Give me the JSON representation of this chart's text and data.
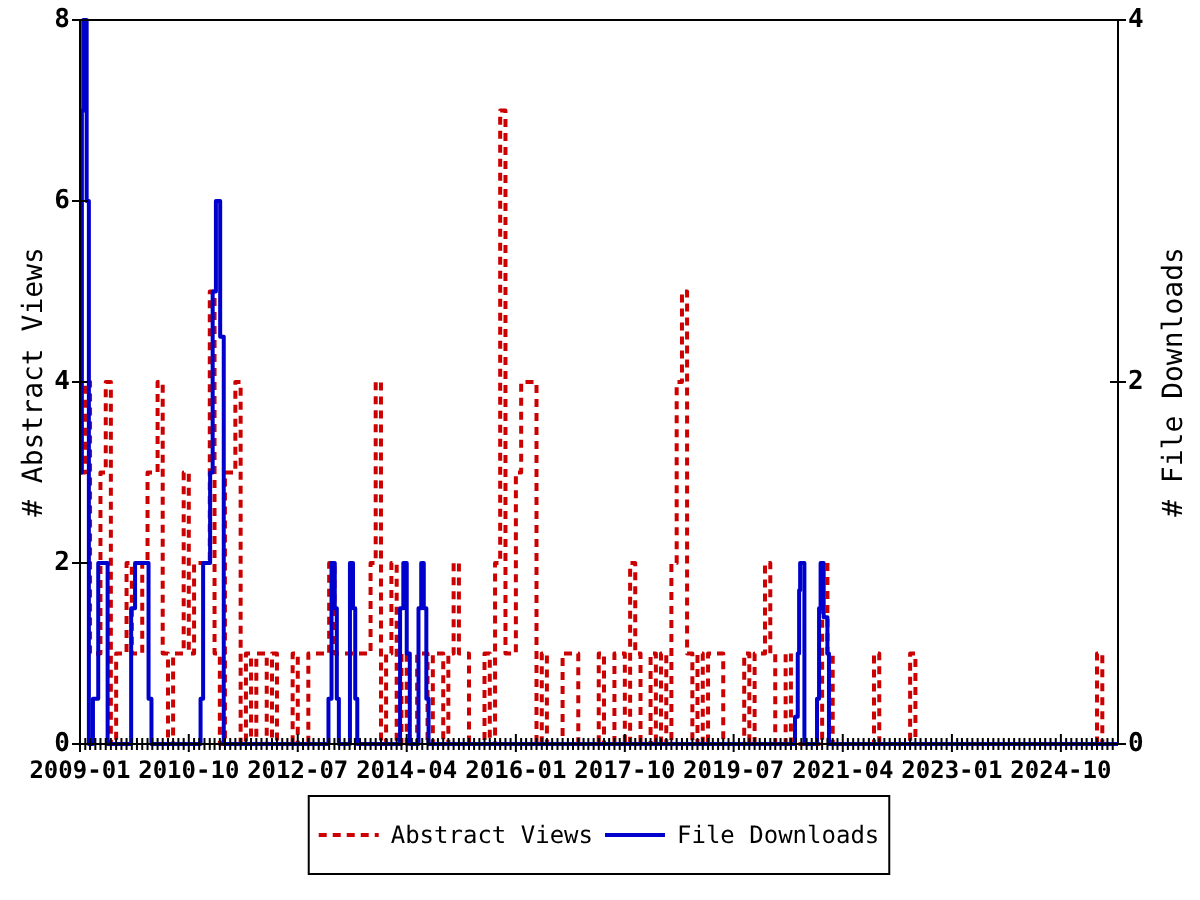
{
  "chart_data": {
    "type": "step",
    "ylabel": "# Abstract Views",
    "y2label": "# File Downloads",
    "x": [
      "2009-01",
      "2009-02",
      "2009-03",
      "2009-04",
      "2009-05",
      "2009-06",
      "2009-07",
      "2009-08",
      "2009-09",
      "2009-10",
      "2009-11",
      "2009-12",
      "2010-01",
      "2010-02",
      "2010-03",
      "2010-04",
      "2010-05",
      "2010-06",
      "2010-07",
      "2010-08",
      "2010-09",
      "2010-10",
      "2010-11",
      "2010-12",
      "2011-01",
      "2011-02",
      "2011-03",
      "2011-04",
      "2011-05",
      "2011-06",
      "2011-07",
      "2011-08",
      "2011-09",
      "2011-10",
      "2011-11",
      "2011-12",
      "2012-01",
      "2012-02",
      "2012-03",
      "2012-04",
      "2012-05",
      "2012-06",
      "2012-07",
      "2012-08",
      "2012-09",
      "2012-10",
      "2012-11",
      "2012-12",
      "2013-01",
      "2013-02",
      "2013-03",
      "2013-04",
      "2013-05",
      "2013-06",
      "2013-07",
      "2013-08",
      "2013-09",
      "2013-10",
      "2013-11",
      "2013-12",
      "2014-01",
      "2014-02",
      "2014-03",
      "2014-04",
      "2014-05",
      "2014-06",
      "2014-07",
      "2014-08",
      "2014-09",
      "2014-10",
      "2014-11",
      "2014-12",
      "2015-01",
      "2015-02",
      "2015-03",
      "2015-04",
      "2015-05",
      "2015-06",
      "2015-07",
      "2015-08",
      "2015-09",
      "2015-10",
      "2015-11",
      "2015-12",
      "2016-01",
      "2016-02",
      "2016-03",
      "2016-04",
      "2016-05",
      "2016-06",
      "2016-07",
      "2016-08",
      "2016-09",
      "2016-10",
      "2016-11",
      "2016-12",
      "2017-01",
      "2017-02",
      "2017-03",
      "2017-04",
      "2017-05",
      "2017-06",
      "2017-07",
      "2017-08",
      "2017-09",
      "2017-10",
      "2017-11",
      "2017-12",
      "2018-01",
      "2018-02",
      "2018-03",
      "2018-04",
      "2018-05",
      "2018-06",
      "2018-07",
      "2018-08",
      "2018-09",
      "2018-10",
      "2018-11",
      "2018-12",
      "2019-01",
      "2019-02",
      "2019-03",
      "2019-04",
      "2019-05",
      "2019-06",
      "2019-07",
      "2019-08",
      "2019-09",
      "2019-10",
      "2019-11",
      "2019-12",
      "2020-01",
      "2020-02",
      "2020-03",
      "2020-04",
      "2020-05",
      "2020-06",
      "2020-07",
      "2020-08",
      "2020-09",
      "2020-10",
      "2020-11",
      "2020-12",
      "2021-01",
      "2021-02",
      "2021-03",
      "2021-04",
      "2021-05",
      "2021-06",
      "2021-07",
      "2021-08",
      "2021-09",
      "2021-10",
      "2021-11",
      "2021-12",
      "2022-01",
      "2022-02",
      "2022-03",
      "2022-04",
      "2022-05",
      "2022-06",
      "2022-07",
      "2022-08",
      "2022-09",
      "2022-10",
      "2022-11",
      "2022-12",
      "2023-01",
      "2023-02",
      "2023-03",
      "2023-04",
      "2023-05",
      "2023-06",
      "2023-07",
      "2023-08",
      "2023-09",
      "2023-10",
      "2023-11",
      "2023-12",
      "2024-01",
      "2024-02",
      "2024-03",
      "2024-04",
      "2024-05",
      "2024-06",
      "2024-07",
      "2024-08",
      "2024-09",
      "2024-10",
      "2024-11",
      "2024-12",
      "2025-01",
      "2025-02",
      "2025-03",
      "2025-04",
      "2025-05",
      "2025-06",
      "2025-07",
      "2025-08",
      "2025-09"
    ],
    "series": [
      {
        "name": "Abstract Views",
        "color": "#cc0000",
        "line_style": "dashed",
        "values": [
          3,
          4,
          1,
          1,
          3,
          4,
          0,
          1,
          1,
          2,
          1,
          1,
          2,
          3,
          3,
          4,
          1,
          0,
          1,
          1,
          3,
          1,
          2,
          2,
          2,
          5,
          1,
          0,
          3,
          3,
          4,
          0,
          1,
          0,
          1,
          1,
          0,
          1,
          0,
          0,
          0,
          1,
          0,
          0,
          1,
          1,
          1,
          1,
          2,
          1,
          1,
          1,
          1,
          1,
          1,
          1,
          2,
          4,
          0,
          1,
          2,
          0,
          1,
          0,
          0,
          1,
          1,
          0,
          1,
          1,
          0,
          1,
          2,
          1,
          1,
          0,
          0,
          0,
          1,
          0,
          2,
          7,
          1,
          1,
          3,
          4,
          4,
          4,
          0,
          1,
          0,
          0,
          0,
          1,
          1,
          1,
          0,
          0,
          0,
          0,
          1,
          0,
          0,
          1,
          1,
          0,
          2,
          1,
          0,
          0,
          1,
          0,
          1,
          0,
          2,
          4,
          5,
          1,
          0,
          1,
          0,
          1,
          1,
          1,
          0,
          0,
          0,
          0,
          1,
          0,
          1,
          1,
          2,
          1,
          0,
          0,
          1,
          0,
          0,
          0,
          0,
          0,
          0,
          2,
          1,
          0,
          0,
          0,
          0,
          0,
          0,
          0,
          0,
          1,
          0,
          0,
          0,
          0,
          0,
          0,
          1,
          0,
          0,
          0,
          0,
          0,
          0,
          0,
          0,
          0,
          0,
          0,
          0,
          0,
          0,
          0,
          0,
          0,
          0,
          0,
          0,
          0,
          0,
          0,
          0,
          0,
          0,
          0,
          0,
          0,
          0,
          0,
          0,
          0,
          0,
          0,
          1,
          0,
          0,
          0,
          0
        ]
      },
      {
        "name": "File Downloads",
        "color": "#0000cc",
        "line_style": "solid",
        "axis": "y2",
        "x": [
          "2009-01-01",
          "2009-01-12",
          "2009-01-20",
          "2009-02-09",
          "2009-02-22",
          "2009-03-18",
          "2009-04-18",
          "2009-06-12",
          "2009-10-28",
          "2009-11-20",
          "2010-02-07",
          "2010-02-24",
          "2010-12-09",
          "2010-12-24",
          "2011-02-03",
          "2011-02-18",
          "2011-03-09",
          "2011-04-03",
          "2011-04-24",
          "2012-12-28",
          "2013-01-15",
          "2013-02-03",
          "2013-02-15",
          "2013-02-27",
          "2013-05-03",
          "2013-05-21",
          "2013-06-03",
          "2013-06-15",
          "2014-02-21",
          "2014-03-12",
          "2014-04-01",
          "2014-04-19",
          "2014-06-09",
          "2014-06-25",
          "2014-07-10",
          "2014-07-25",
          "2014-08-07",
          "2020-06-25",
          "2020-07-11",
          "2020-07-19",
          "2020-07-25",
          "2020-08-19",
          "2020-11-01",
          "2020-11-13",
          "2020-11-22",
          "2020-12-10",
          "2021-01-01",
          "2021-01-10",
          "2025-09-01"
        ],
        "values": [
          1.5,
          3.5,
          4,
          3,
          0,
          0.25,
          1,
          0,
          0.75,
          1,
          0.25,
          0,
          0.25,
          1,
          1.5,
          2.5,
          3,
          2.25,
          0,
          0.25,
          1,
          0.75,
          0.25,
          0,
          1,
          0.75,
          0.25,
          0,
          0.75,
          1,
          0.5,
          0,
          0.75,
          1,
          0.75,
          0.25,
          0,
          0.15,
          0.5,
          0.85,
          1,
          0,
          0.25,
          0.75,
          1,
          0.7,
          0.5,
          0,
          0
        ]
      }
    ],
    "xlim": [
      "2009-01",
      "2025-09"
    ],
    "xticks": [
      "2009-01",
      {
        "value": "2009-02",
        "label": null
      },
      {
        "value": "2009-03",
        "label": null
      },
      {
        "value": "2009-04",
        "label": null
      },
      {
        "value": "2009-05",
        "label": null
      },
      {
        "value": "2009-06",
        "label": null
      },
      {
        "value": "2009-07",
        "label": null
      },
      {
        "value": "2009-08",
        "label": null
      },
      {
        "value": "2009-09",
        "label": null
      },
      {
        "value": "2009-10",
        "label": null
      },
      {
        "value": "2009-11",
        "label": null
      },
      {
        "value": "2009-12",
        "label": null
      },
      {
        "value": "2010-01",
        "label": null
      },
      {
        "value": "2010-02",
        "label": null
      },
      {
        "value": "2010-03",
        "label": null
      },
      {
        "value": "2010-04",
        "label": null
      },
      {
        "value": "2010-05",
        "label": null
      },
      {
        "value": "2010-06",
        "label": null
      },
      {
        "value": "2010-07",
        "label": null
      },
      {
        "value": "2010-08",
        "label": null
      },
      {
        "value": "2010-09",
        "label": null
      },
      "2010-10",
      {
        "value": "2010-11",
        "label": null
      },
      {
        "value": "2010-12",
        "label": null
      },
      {
        "value": "2011-01",
        "label": null
      },
      {
        "value": "2011-02",
        "label": null
      },
      {
        "value": "2011-03",
        "label": null
      },
      {
        "value": "2011-04",
        "label": null
      },
      {
        "value": "2011-05",
        "label": null
      },
      {
        "value": "2011-06",
        "label": null
      },
      {
        "value": "2011-07",
        "label": null
      },
      {
        "value": "2011-08",
        "label": null
      },
      {
        "value": "2011-09",
        "label": null
      },
      {
        "value": "2011-10",
        "label": null
      },
      {
        "value": "2011-11",
        "label": null
      },
      {
        "value": "2011-12",
        "label": null
      },
      {
        "value": "2012-01",
        "label": null
      },
      {
        "value": "2012-02",
        "label": null
      },
      {
        "value": "2012-03",
        "label": null
      },
      {
        "value": "2012-04",
        "label": null
      },
      {
        "value": "2012-05",
        "label": null
      },
      {
        "value": "2012-06",
        "label": null
      },
      "2012-07",
      {
        "value": "2012-08",
        "label": null
      },
      {
        "value": "2012-09",
        "label": null
      },
      {
        "value": "2012-10",
        "label": null
      },
      {
        "value": "2012-11",
        "label": null
      },
      {
        "value": "2012-12",
        "label": null
      },
      {
        "value": "2013-01",
        "label": null
      },
      {
        "value": "2013-02",
        "label": null
      },
      {
        "value": "2013-03",
        "label": null
      },
      {
        "value": "2013-04",
        "label": null
      },
      {
        "value": "2013-05",
        "label": null
      },
      {
        "value": "2013-06",
        "label": null
      },
      {
        "value": "2013-07",
        "label": null
      },
      {
        "value": "2013-08",
        "label": null
      },
      {
        "value": "2013-09",
        "label": null
      },
      {
        "value": "2013-10",
        "label": null
      },
      {
        "value": "2013-11",
        "label": null
      },
      {
        "value": "2013-12",
        "label": null
      },
      {
        "value": "2014-01",
        "label": null
      },
      {
        "value": "2014-02",
        "label": null
      },
      {
        "value": "2014-03",
        "label": null
      },
      "2014-04",
      {
        "value": "2014-05",
        "label": null
      },
      {
        "value": "2014-06",
        "label": null
      },
      {
        "value": "2014-07",
        "label": null
      },
      {
        "value": "2014-08",
        "label": null
      },
      {
        "value": "2014-09",
        "label": null
      },
      {
        "value": "2014-10",
        "label": null
      },
      {
        "value": "2014-11",
        "label": null
      },
      {
        "value": "2014-12",
        "label": null
      },
      {
        "value": "2015-01",
        "label": null
      },
      {
        "value": "2015-02",
        "label": null
      },
      {
        "value": "2015-03",
        "label": null
      },
      {
        "value": "2015-04",
        "label": null
      },
      {
        "value": "2015-05",
        "label": null
      },
      {
        "value": "2015-06",
        "label": null
      },
      {
        "value": "2015-07",
        "label": null
      },
      {
        "value": "2015-08",
        "label": null
      },
      {
        "value": "2015-09",
        "label": null
      },
      {
        "value": "2015-10",
        "label": null
      },
      {
        "value": "2015-11",
        "label": null
      },
      {
        "value": "2015-12",
        "label": null
      },
      "2016-01",
      {
        "value": "2016-02",
        "label": null
      },
      {
        "value": "2016-03",
        "label": null
      },
      {
        "value": "2016-04",
        "label": null
      },
      {
        "value": "2016-05",
        "label": null
      },
      {
        "value": "2016-06",
        "label": null
      },
      {
        "value": "2016-07",
        "label": null
      },
      {
        "value": "2016-08",
        "label": null
      },
      {
        "value": "2016-09",
        "label": null
      },
      {
        "value": "2016-10",
        "label": null
      },
      {
        "value": "2016-11",
        "label": null
      },
      {
        "value": "2016-12",
        "label": null
      },
      {
        "value": "2017-01",
        "label": null
      },
      {
        "value": "2017-02",
        "label": null
      },
      {
        "value": "2017-03",
        "label": null
      },
      {
        "value": "2017-04",
        "label": null
      },
      {
        "value": "2017-05",
        "label": null
      },
      {
        "value": "2017-06",
        "label": null
      },
      {
        "value": "2017-07",
        "label": null
      },
      {
        "value": "2017-08",
        "label": null
      },
      {
        "value": "2017-09",
        "label": null
      },
      "2017-10",
      {
        "value": "2017-11",
        "label": null
      },
      {
        "value": "2017-12",
        "label": null
      },
      {
        "value": "2018-01",
        "label": null
      },
      {
        "value": "2018-02",
        "label": null
      },
      {
        "value": "2018-03",
        "label": null
      },
      {
        "value": "2018-04",
        "label": null
      },
      {
        "value": "2018-05",
        "label": null
      },
      {
        "value": "2018-06",
        "label": null
      },
      {
        "value": "2018-07",
        "label": null
      },
      {
        "value": "2018-08",
        "label": null
      },
      {
        "value": "2018-09",
        "label": null
      },
      {
        "value": "2018-10",
        "label": null
      },
      {
        "value": "2018-11",
        "label": null
      },
      {
        "value": "2018-12",
        "label": null
      },
      {
        "value": "2019-01",
        "label": null
      },
      {
        "value": "2019-02",
        "label": null
      },
      {
        "value": "2019-03",
        "label": null
      },
      {
        "value": "2019-04",
        "label": null
      },
      {
        "value": "2019-05",
        "label": null
      },
      {
        "value": "2019-06",
        "label": null
      },
      "2019-07",
      {
        "value": "2019-08",
        "label": null
      },
      {
        "value": "2019-09",
        "label": null
      },
      {
        "value": "2019-10",
        "label": null
      },
      {
        "value": "2019-11",
        "label": null
      },
      {
        "value": "2019-12",
        "label": null
      },
      {
        "value": "2020-01",
        "label": null
      },
      {
        "value": "2020-02",
        "label": null
      },
      {
        "value": "2020-03",
        "label": null
      },
      {
        "value": "2020-04",
        "label": null
      },
      {
        "value": "2020-05",
        "label": null
      },
      {
        "value": "2020-06",
        "label": null
      },
      {
        "value": "2020-07",
        "label": null
      },
      {
        "value": "2020-08",
        "label": null
      },
      {
        "value": "2020-09",
        "label": null
      },
      {
        "value": "2020-10",
        "label": null
      },
      {
        "value": "2020-11",
        "label": null
      },
      {
        "value": "2020-12",
        "label": null
      },
      {
        "value": "2021-01",
        "label": null
      },
      {
        "value": "2021-02",
        "label": null
      },
      {
        "value": "2021-03",
        "label": null
      },
      "2021-04",
      {
        "value": "2021-05",
        "label": null
      },
      {
        "value": "2021-06",
        "label": null
      },
      {
        "value": "2021-07",
        "label": null
      },
      {
        "value": "2021-08",
        "label": null
      },
      {
        "value": "2021-09",
        "label": null
      },
      {
        "value": "2021-10",
        "label": null
      },
      {
        "value": "2021-11",
        "label": null
      },
      {
        "value": "2021-12",
        "label": null
      },
      {
        "value": "2022-01",
        "label": null
      },
      {
        "value": "2022-02",
        "label": null
      },
      {
        "value": "2022-03",
        "label": null
      },
      {
        "value": "2022-04",
        "label": null
      },
      {
        "value": "2022-05",
        "label": null
      },
      {
        "value": "2022-06",
        "label": null
      },
      {
        "value": "2022-07",
        "label": null
      },
      {
        "value": "2022-08",
        "label": null
      },
      {
        "value": "2022-09",
        "label": null
      },
      {
        "value": "2022-10",
        "label": null
      },
      {
        "value": "2022-11",
        "label": null
      },
      {
        "value": "2022-12",
        "label": null
      },
      "2023-01",
      {
        "value": "2023-02",
        "label": null
      },
      {
        "value": "2023-03",
        "label": null
      },
      {
        "value": "2023-04",
        "label": null
      },
      {
        "value": "2023-05",
        "label": null
      },
      {
        "value": "2023-06",
        "label": null
      },
      {
        "value": "2023-07",
        "label": null
      },
      {
        "value": "2023-08",
        "label": null
      },
      {
        "value": "2023-09",
        "label": null
      },
      {
        "value": "2023-10",
        "label": null
      },
      {
        "value": "2023-11",
        "label": null
      },
      {
        "value": "2023-12",
        "label": null
      },
      {
        "value": "2024-01",
        "label": null
      },
      {
        "value": "2024-02",
        "label": null
      },
      {
        "value": "2024-03",
        "label": null
      },
      {
        "value": "2024-04",
        "label": null
      },
      {
        "value": "2024-05",
        "label": null
      },
      {
        "value": "2024-06",
        "label": null
      },
      {
        "value": "2024-07",
        "label": null
      },
      {
        "value": "2024-08",
        "label": null
      },
      {
        "value": "2024-09",
        "label": null
      },
      "2024-10",
      {
        "value": "2024-11",
        "label": null
      },
      {
        "value": "2024-12",
        "label": null
      },
      {
        "value": "2025-01",
        "label": null
      },
      {
        "value": "2025-02",
        "label": null
      },
      {
        "value": "2025-03",
        "label": null
      },
      {
        "value": "2025-04",
        "label": null
      },
      {
        "value": "2025-05",
        "label": null
      },
      {
        "value": "2025-06",
        "label": null
      },
      {
        "value": "2025-07",
        "label": null
      },
      {
        "value": "2025-08",
        "label": null
      }
    ],
    "ylim": [
      0,
      8
    ],
    "yticks": [
      0,
      2,
      4,
      6,
      8
    ],
    "y2lim": [
      0,
      4
    ],
    "y2ticks": [
      0,
      2,
      4
    ],
    "legend": "bottom"
  }
}
